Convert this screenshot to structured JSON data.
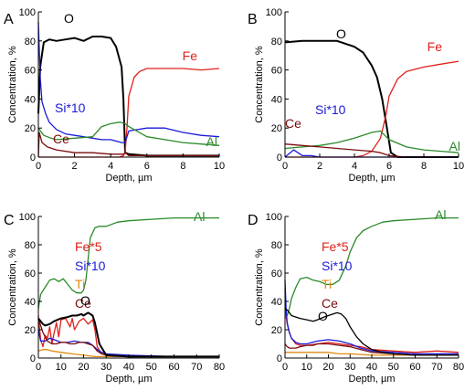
{
  "chart_data": [
    {
      "panel": "A",
      "type": "line",
      "xlabel": "Depth, µm",
      "ylabel": "Concentration, %",
      "xlim": [
        0,
        10
      ],
      "ylim": [
        0,
        100
      ],
      "xticks": [
        0,
        2,
        4,
        6,
        8,
        10
      ],
      "yticks": [
        0,
        20,
        40,
        60,
        80,
        100
      ],
      "series": [
        {
          "name": "O",
          "color": "#000000",
          "x": [
            0,
            0.1,
            0.3,
            0.6,
            1,
            1.5,
            2,
            2.5,
            3,
            3.5,
            4,
            4.3,
            4.6,
            4.7,
            4.8,
            5,
            6,
            8,
            10
          ],
          "y": [
            30,
            62,
            79,
            81,
            80,
            81,
            82,
            80,
            83,
            83,
            82,
            76,
            62,
            40,
            3,
            2,
            1,
            1,
            1
          ]
        },
        {
          "name": "Fe",
          "color": "#e0201a",
          "x": [
            0,
            3,
            4.5,
            4.7,
            4.8,
            4.9,
            5,
            5.3,
            5.6,
            6,
            7,
            8,
            9,
            10
          ],
          "y": [
            0,
            0,
            0,
            1,
            3,
            20,
            42,
            55,
            59,
            61,
            61,
            61,
            60,
            61
          ]
        },
        {
          "name": "Si*10",
          "color": "#1a1ad8",
          "x": [
            0,
            0.1,
            0.2,
            0.4,
            0.6,
            1,
            1.5,
            2,
            2.5,
            3,
            3.5,
            4,
            4.6,
            4.8,
            5,
            6,
            7,
            8,
            9,
            10
          ],
          "y": [
            93,
            55,
            38,
            30,
            24,
            19,
            16,
            15,
            14,
            13,
            12,
            12,
            10,
            10,
            18,
            20,
            20,
            17,
            15,
            14
          ]
        },
        {
          "name": "Al",
          "color": "#2a8a2a",
          "x": [
            0,
            0.3,
            0.7,
            1,
            2,
            3,
            3.5,
            4,
            4.5,
            4.8,
            5,
            6,
            7,
            8,
            9,
            10
          ],
          "y": [
            20,
            15,
            13,
            12,
            13,
            14,
            21,
            23,
            24,
            23,
            21,
            14,
            12,
            10,
            9,
            8
          ]
        },
        {
          "name": "Ce",
          "color": "#7a0c0c",
          "x": [
            0,
            0.05,
            0.2,
            0.5,
            1,
            2,
            3,
            4,
            4.7,
            4.8,
            5,
            6,
            8,
            10
          ],
          "y": [
            0,
            17,
            10,
            7,
            5,
            3,
            3,
            2,
            2,
            3,
            1,
            1,
            1,
            1
          ]
        }
      ],
      "labels": [
        "O",
        "Fe",
        "Si*10",
        "Al",
        "Ce"
      ]
    },
    {
      "panel": "B",
      "type": "line",
      "xlabel": "Depth, µm",
      "ylabel": "Concentration, %",
      "xlim": [
        0,
        10
      ],
      "ylim": [
        0,
        100
      ],
      "xticks": [
        0,
        2,
        4,
        6,
        8,
        10
      ],
      "yticks": [
        0,
        20,
        40,
        60,
        80,
        100
      ],
      "series": [
        {
          "name": "O",
          "color": "#000000",
          "x": [
            0,
            1,
            2,
            3,
            4,
            4.5,
            5,
            5.3,
            5.6,
            5.9,
            6.1,
            6.5,
            8,
            10
          ],
          "y": [
            79,
            80,
            80,
            80,
            76,
            72,
            63,
            55,
            40,
            18,
            3,
            0,
            0,
            0
          ]
        },
        {
          "name": "Fe",
          "color": "#e0201a",
          "x": [
            0,
            4,
            4.5,
            5,
            5.5,
            5.8,
            6,
            6.5,
            7,
            8,
            9,
            10
          ],
          "y": [
            0,
            0,
            1,
            4,
            13,
            28,
            42,
            54,
            59,
            62,
            64,
            66
          ]
        },
        {
          "name": "Si*10",
          "color": "#1a1ad8",
          "x": [
            0,
            0.5,
            1,
            1.5,
            2,
            3,
            4,
            5,
            6,
            8,
            10
          ],
          "y": [
            0,
            5,
            1,
            1,
            0,
            0,
            0,
            0,
            0,
            0,
            0
          ]
        },
        {
          "name": "Al",
          "color": "#2a8a2a",
          "x": [
            0,
            1,
            2,
            3,
            4,
            5,
            5.5,
            6,
            7,
            8,
            9,
            10
          ],
          "y": [
            6,
            7,
            8,
            10,
            13,
            17,
            18,
            12,
            7,
            5,
            4,
            3
          ]
        },
        {
          "name": "Ce",
          "color": "#7a0c0c",
          "x": [
            0,
            1,
            2,
            3,
            4,
            5,
            5.5,
            6,
            7,
            10
          ],
          "y": [
            9,
            8,
            7,
            6,
            5,
            4,
            3,
            1,
            0,
            0
          ]
        }
      ],
      "labels": [
        "O",
        "Fe",
        "Si*10",
        "Al",
        "Ce"
      ]
    },
    {
      "panel": "C",
      "type": "line",
      "xlabel": "Depth, µm",
      "ylabel": "Concentration, %",
      "xlim": [
        0,
        80
      ],
      "ylim": [
        0,
        100
      ],
      "xticks": [
        0,
        10,
        20,
        30,
        40,
        50,
        60,
        70,
        80
      ],
      "yticks": [
        0,
        20,
        40,
        60,
        80,
        100
      ],
      "series": [
        {
          "name": "Al",
          "color": "#2a8a2a",
          "x": [
            0,
            1,
            3,
            5,
            7,
            9,
            11,
            13,
            15,
            17,
            19,
            20,
            21,
            22,
            23,
            25,
            27,
            30,
            35,
            40,
            50,
            60,
            70,
            80
          ],
          "y": [
            35,
            45,
            50,
            55,
            56,
            54,
            56,
            52,
            48,
            46,
            46,
            48,
            55,
            70,
            85,
            92,
            93,
            93,
            96,
            97,
            98,
            99,
            99,
            99
          ]
        },
        {
          "name": "Fe*5",
          "color": "#e0201a",
          "x": [
            0,
            1,
            2,
            3,
            4,
            5,
            6,
            7,
            8,
            9,
            10,
            12,
            14,
            15,
            16,
            18,
            20,
            22,
            24,
            25,
            26,
            28,
            30,
            40,
            60,
            80
          ],
          "y": [
            30,
            13,
            8,
            16,
            14,
            22,
            10,
            18,
            25,
            15,
            27,
            28,
            22,
            28,
            20,
            26,
            28,
            24,
            27,
            20,
            8,
            3,
            2,
            1,
            1,
            1
          ]
        },
        {
          "name": "Si*10",
          "color": "#1a1ad8",
          "x": [
            0,
            1,
            3,
            5,
            7,
            10,
            13,
            16,
            19,
            22,
            24,
            26,
            28,
            30,
            40,
            60,
            80
          ],
          "y": [
            20,
            12,
            12,
            14,
            13,
            11,
            11,
            12,
            11,
            11,
            9,
            6,
            4,
            3,
            2,
            1,
            1
          ]
        },
        {
          "name": "Ti",
          "color": "#e08a10",
          "x": [
            0,
            2,
            4,
            6,
            10,
            15,
            20,
            25,
            30,
            40,
            60,
            80
          ],
          "y": [
            5,
            6,
            6,
            5,
            4,
            3,
            2,
            1,
            1,
            1,
            1,
            1
          ]
        },
        {
          "name": "Ce",
          "color": "#7a0c0c",
          "x": [
            0,
            2,
            4,
            6,
            8,
            10,
            12,
            14,
            16,
            18,
            20,
            22,
            24,
            26,
            28,
            30,
            40,
            60,
            80
          ],
          "y": [
            28,
            18,
            12,
            10,
            10,
            11,
            11,
            10,
            10,
            11,
            11,
            10,
            9,
            5,
            3,
            2,
            1,
            1,
            1
          ]
        },
        {
          "name": "O",
          "color": "#000000",
          "x": [
            0,
            1,
            2,
            3,
            5,
            7,
            10,
            13,
            15,
            17,
            19,
            20,
            21,
            22,
            23,
            24,
            25,
            27,
            30,
            40,
            60,
            80
          ],
          "y": [
            28,
            26,
            24,
            23,
            24,
            26,
            28,
            29,
            30,
            30,
            31,
            30,
            31,
            32,
            31,
            30,
            25,
            10,
            2,
            1,
            1,
            1
          ]
        }
      ],
      "labels": [
        "Al",
        "Fe*5",
        "Si*10",
        "Ti",
        "Ce",
        "O"
      ]
    },
    {
      "panel": "D",
      "type": "line",
      "xlabel": "Depth, µm",
      "ylabel": "Concentration, %",
      "xlim": [
        0,
        80
      ],
      "ylim": [
        0,
        100
      ],
      "xticks": [
        0,
        10,
        20,
        30,
        40,
        50,
        60,
        70,
        80
      ],
      "yticks": [
        0,
        20,
        40,
        60,
        80,
        100
      ],
      "series": [
        {
          "name": "Al",
          "color": "#2a8a2a",
          "x": [
            0,
            1,
            2,
            3,
            5,
            7,
            10,
            13,
            16,
            19,
            22,
            25,
            28,
            30,
            33,
            36,
            40,
            45,
            50,
            60,
            70,
            80
          ],
          "y": [
            28,
            30,
            35,
            42,
            50,
            56,
            57,
            55,
            54,
            52,
            52,
            55,
            65,
            75,
            85,
            90,
            93,
            96,
            97,
            98,
            99,
            99
          ]
        },
        {
          "name": "Fe*5",
          "color": "#e0201a",
          "x": [
            0,
            0.5,
            1,
            2,
            3,
            5,
            7,
            10,
            15,
            20,
            25,
            30,
            35,
            40,
            50,
            60,
            70,
            80
          ],
          "y": [
            48,
            30,
            24,
            18,
            14,
            10,
            9,
            9,
            10,
            11,
            10,
            9,
            8,
            6,
            5,
            4,
            5,
            4
          ]
        },
        {
          "name": "Si*10",
          "color": "#1a1ad8",
          "x": [
            0,
            0.5,
            1,
            2,
            3,
            5,
            7,
            10,
            15,
            20,
            25,
            30,
            35,
            40,
            50,
            60,
            70,
            80
          ],
          "y": [
            55,
            35,
            25,
            18,
            14,
            11,
            10,
            10,
            12,
            13,
            12,
            10,
            7,
            5,
            4,
            3,
            3,
            3
          ]
        },
        {
          "name": "Ti",
          "color": "#e08a10",
          "x": [
            0,
            5,
            10,
            15,
            20,
            25,
            30,
            40,
            50,
            60,
            70,
            80
          ],
          "y": [
            4,
            4,
            4,
            4,
            4,
            3,
            3,
            2,
            2,
            2,
            2,
            2
          ]
        },
        {
          "name": "Ce",
          "color": "#7a0c0c",
          "x": [
            0,
            1,
            2,
            3,
            5,
            7,
            10,
            13,
            15,
            18,
            20,
            25,
            30,
            35,
            40,
            50,
            60,
            80
          ],
          "y": [
            10,
            8,
            7,
            7,
            7,
            8,
            9,
            9,
            10,
            10,
            10,
            9,
            8,
            6,
            4,
            3,
            2,
            2
          ]
        },
        {
          "name": "O",
          "color": "#000000",
          "x": [
            0,
            1,
            2,
            3,
            5,
            7,
            10,
            13,
            15,
            18,
            20,
            22,
            24,
            26,
            28,
            30,
            33,
            36,
            40,
            45,
            50,
            60,
            70,
            80
          ],
          "y": [
            35,
            34,
            32,
            30,
            29,
            28,
            27,
            26,
            27,
            29,
            30,
            31,
            32,
            31,
            28,
            22,
            15,
            10,
            6,
            4,
            3,
            2,
            2,
            2
          ]
        }
      ],
      "labels": [
        "Al",
        "Fe*5",
        "Si*10",
        "Ti",
        "Ce",
        "O"
      ]
    }
  ]
}
